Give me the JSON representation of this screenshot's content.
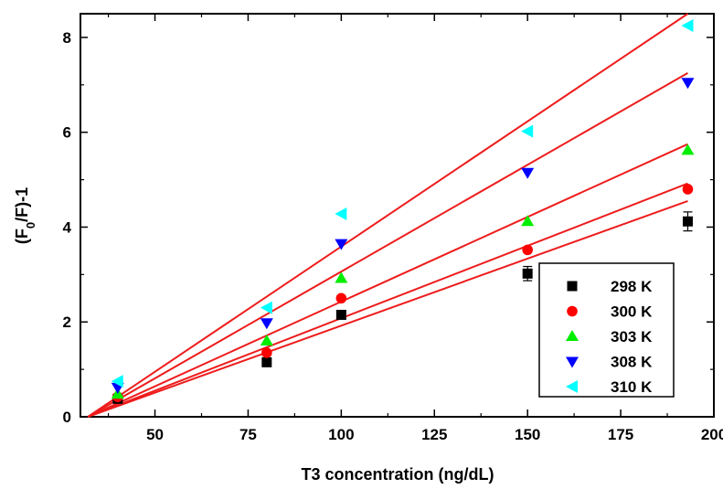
{
  "chart_data": {
    "type": "scatter",
    "xlabel": "T3 concentration (ng/dL)",
    "ylabel_parts": {
      "a": "(F",
      "sub": "0",
      "b": "/F)-1"
    },
    "xlim": [
      30,
      200
    ],
    "ylim": [
      0,
      8.5
    ],
    "x_ticks": [
      50,
      75,
      100,
      125,
      150,
      175,
      200
    ],
    "y_ticks": [
      0,
      2,
      4,
      6,
      8
    ],
    "grid": false,
    "legend_position": "bottom-right",
    "fit_line_color": "#ee1c1c",
    "series": [
      {
        "name": "298 K",
        "marker": "square",
        "color": "#000000",
        "x": [
          40,
          80,
          100,
          150,
          193
        ],
        "y": [
          0.38,
          1.15,
          2.15,
          3.02,
          4.12
        ],
        "y_err": [
          0,
          0,
          0,
          0.15,
          0.2
        ],
        "fit_x": [
          32,
          193
        ],
        "fit_y": [
          0,
          4.55
        ]
      },
      {
        "name": "300 K",
        "marker": "circle",
        "color": "#ff0000",
        "x": [
          40,
          80,
          100,
          150,
          193
        ],
        "y": [
          0.42,
          1.35,
          2.5,
          3.52,
          4.8
        ],
        "fit_x": [
          32,
          193
        ],
        "fit_y": [
          0,
          4.92
        ]
      },
      {
        "name": "303 K",
        "marker": "triangle-up",
        "color": "#00ee00",
        "x": [
          40,
          80,
          100,
          150,
          193
        ],
        "y": [
          0.48,
          1.6,
          2.92,
          4.12,
          5.62
        ],
        "fit_x": [
          32,
          193
        ],
        "fit_y": [
          0,
          5.75
        ]
      },
      {
        "name": "308 K",
        "marker": "triangle-down",
        "color": "#0000ff",
        "x": [
          40,
          80,
          100,
          150,
          193
        ],
        "y": [
          0.62,
          1.98,
          3.65,
          5.15,
          7.05
        ],
        "fit_x": [
          32,
          193
        ],
        "fit_y": [
          0,
          7.25
        ]
      },
      {
        "name": "310 K",
        "marker": "triangle-left",
        "color": "#00ffff",
        "x": [
          40,
          80,
          100,
          150,
          193
        ],
        "y": [
          0.75,
          2.3,
          4.28,
          6.02,
          8.25
        ],
        "fit_x": [
          32,
          193
        ],
        "fit_y": [
          0,
          8.5
        ]
      }
    ]
  }
}
